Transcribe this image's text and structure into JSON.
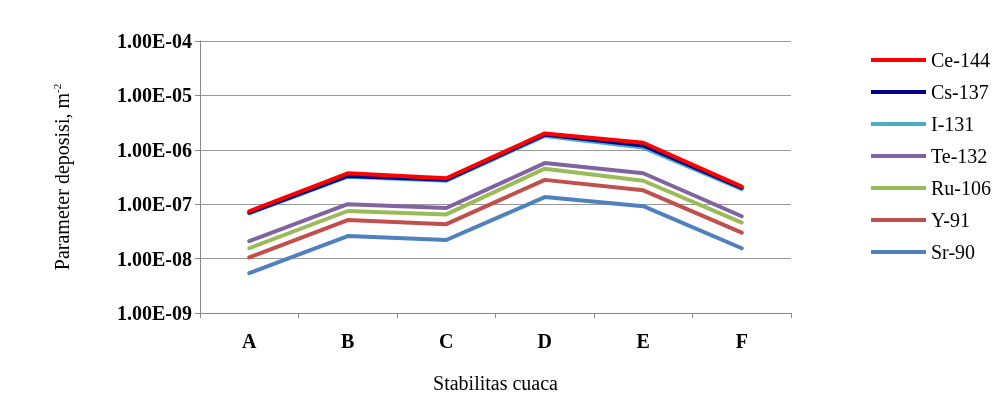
{
  "chart_data": {
    "type": "line",
    "xlabel": "Stabilitas cuaca",
    "ylabel": "Parameter deposisi, m$^{-2}$",
    "categories": [
      "A",
      "B",
      "C",
      "D",
      "E",
      "F"
    ],
    "log": "y",
    "ylim": [
      1e-09,
      0.0001
    ],
    "yticks": [
      {
        "value": 1e-09,
        "label": "1.00E-09"
      },
      {
        "value": 1e-08,
        "label": "1.00E-08"
      },
      {
        "value": 1e-07,
        "label": "1.00E-07"
      },
      {
        "value": 1e-06,
        "label": "1.00E-06"
      },
      {
        "value": 1e-05,
        "label": "1.00E-05"
      },
      {
        "value": 0.0001,
        "label": "1.00E-04"
      }
    ],
    "grid": "y",
    "legend": "right",
    "marker": "none",
    "line_style": "solid",
    "series": [
      {
        "name": "Ce-144",
        "color": "#ff0000",
        "values": [
          7.4e-08,
          3.7e-07,
          3e-07,
          2e-06,
          1.35e-06,
          2.1e-07
        ]
      },
      {
        "name": "Cs-137",
        "color": "#00008b",
        "values": [
          7e-08,
          3.3e-07,
          2.8e-07,
          1.9e-06,
          1.2e-06,
          2e-07
        ]
      },
      {
        "name": "I-131",
        "color": "#4bacc6",
        "values": [
          6.8e-08,
          3.2e-07,
          2.7e-07,
          1.8e-06,
          1.1e-06,
          1.9e-07
        ]
      },
      {
        "name": "Te-132",
        "color": "#8064a2",
        "values": [
          2.1e-08,
          1e-07,
          8.5e-08,
          5.7e-07,
          3.7e-07,
          6e-08
        ]
      },
      {
        "name": "Ru-106",
        "color": "#9bbb59",
        "values": [
          1.55e-08,
          7.5e-08,
          6.5e-08,
          4.5e-07,
          2.7e-07,
          4.6e-08
        ]
      },
      {
        "name": "Y-91",
        "color": "#c0504d",
        "values": [
          1.05e-08,
          5.1e-08,
          4.3e-08,
          2.8e-07,
          1.8e-07,
          3e-08
        ]
      },
      {
        "name": "Sr-90",
        "color": "#4f81bd",
        "values": [
          5.4e-09,
          2.6e-08,
          2.2e-08,
          1.35e-07,
          9.2e-08,
          1.55e-08
        ]
      }
    ]
  }
}
